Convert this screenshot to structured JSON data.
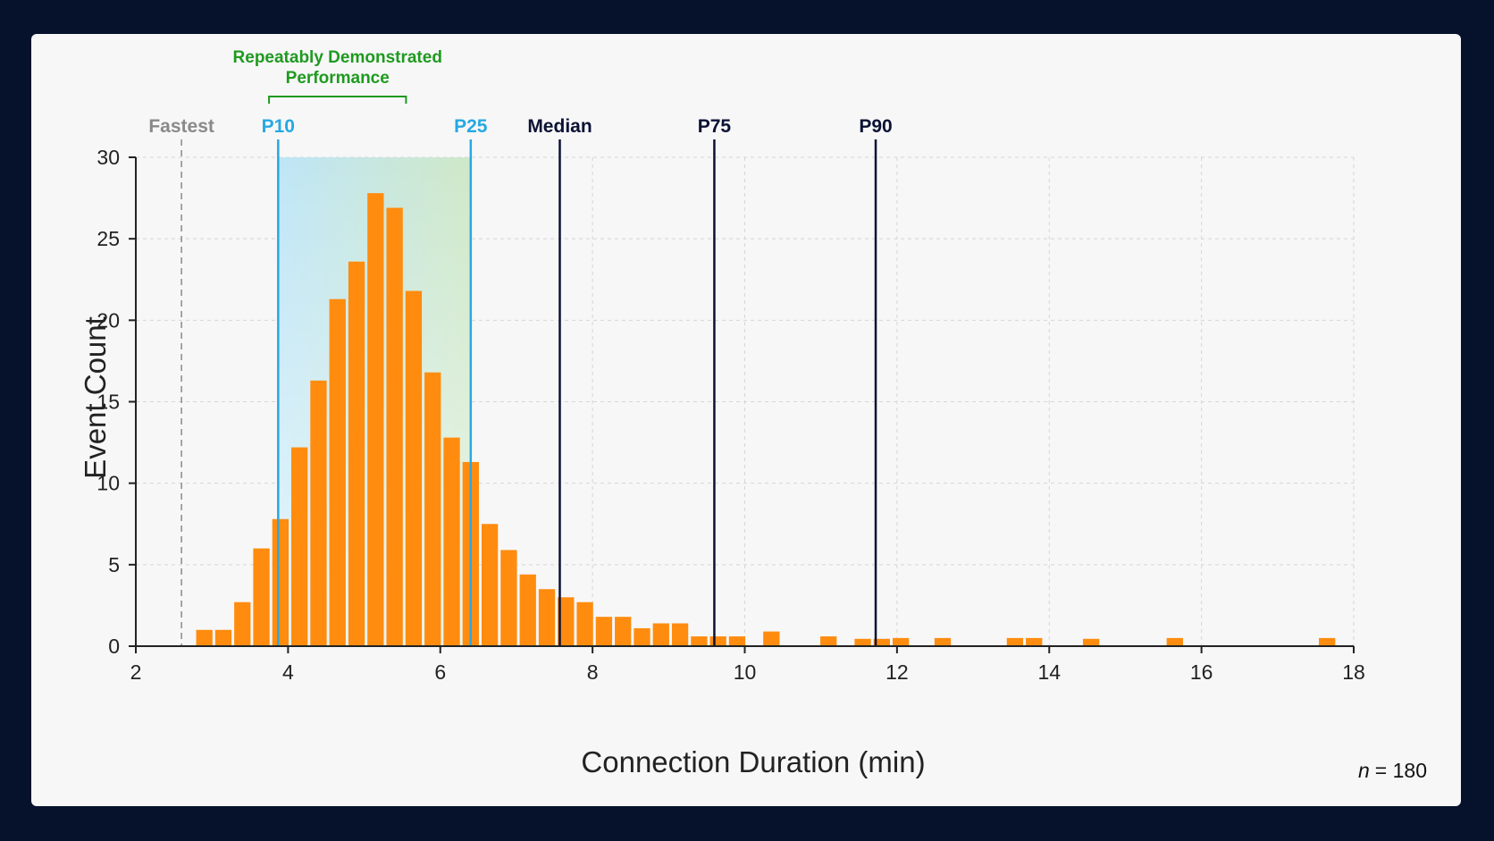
{
  "colors": {
    "background": "#06122c",
    "panel": "#f7f7f8",
    "bar": "#ff8c0f",
    "grid": "#d6d6d6",
    "percentile_low": "#27a9e1",
    "percentile_high": "#0b1233",
    "fastest": "#8a8a8a",
    "annotation": "#1f9a1f"
  },
  "chart_data": {
    "type": "bar",
    "title": "",
    "xlabel": "Connection Duration (min)",
    "ylabel": "Event Count",
    "xlim": [
      2,
      18
    ],
    "ylim": [
      0,
      30
    ],
    "x_ticks": [
      2,
      4,
      6,
      8,
      10,
      12,
      14,
      16,
      18
    ],
    "y_ticks": [
      0,
      5,
      10,
      15,
      20,
      25,
      30
    ],
    "grid": true,
    "bin_width": 0.25,
    "bins": [
      {
        "x": 2.9,
        "count": 1
      },
      {
        "x": 3.15,
        "count": 1
      },
      {
        "x": 3.4,
        "count": 2.7
      },
      {
        "x": 3.65,
        "count": 6
      },
      {
        "x": 3.9,
        "count": 7.8
      },
      {
        "x": 4.15,
        "count": 12.2
      },
      {
        "x": 4.4,
        "count": 16.3
      },
      {
        "x": 4.65,
        "count": 21.3
      },
      {
        "x": 4.9,
        "count": 23.6
      },
      {
        "x": 5.15,
        "count": 27.8
      },
      {
        "x": 5.4,
        "count": 26.9
      },
      {
        "x": 5.65,
        "count": 21.8
      },
      {
        "x": 5.9,
        "count": 16.8
      },
      {
        "x": 6.15,
        "count": 12.8
      },
      {
        "x": 6.4,
        "count": 11.3
      },
      {
        "x": 6.65,
        "count": 7.5
      },
      {
        "x": 6.9,
        "count": 5.9
      },
      {
        "x": 7.15,
        "count": 4.4
      },
      {
        "x": 7.4,
        "count": 3.5
      },
      {
        "x": 7.65,
        "count": 3
      },
      {
        "x": 7.9,
        "count": 2.7
      },
      {
        "x": 8.15,
        "count": 1.8
      },
      {
        "x": 8.4,
        "count": 1.8
      },
      {
        "x": 8.65,
        "count": 1.1
      },
      {
        "x": 8.9,
        "count": 1.4
      },
      {
        "x": 9.15,
        "count": 1.4
      },
      {
        "x": 9.4,
        "count": 0.6
      },
      {
        "x": 9.65,
        "count": 0.6
      },
      {
        "x": 9.9,
        "count": 0.6
      },
      {
        "x": 10.35,
        "count": 0.9
      },
      {
        "x": 11.1,
        "count": 0.6
      },
      {
        "x": 11.55,
        "count": 0.45
      },
      {
        "x": 11.8,
        "count": 0.45
      },
      {
        "x": 12.05,
        "count": 0.5
      },
      {
        "x": 12.6,
        "count": 0.5
      },
      {
        "x": 13.55,
        "count": 0.5
      },
      {
        "x": 13.8,
        "count": 0.5
      },
      {
        "x": 14.55,
        "count": 0.45
      },
      {
        "x": 15.65,
        "count": 0.5
      },
      {
        "x": 17.65,
        "count": 0.5
      }
    ],
    "markers": [
      {
        "label": "Fastest",
        "x": 2.6,
        "style": "dashed",
        "color": "#8a8a8a"
      },
      {
        "label": "P10",
        "x": 3.87,
        "style": "solid",
        "color": "#27a9e1"
      },
      {
        "label": "P25",
        "x": 6.4,
        "style": "solid",
        "color": "#27a9e1"
      },
      {
        "label": "Median",
        "x": 7.57,
        "style": "solid",
        "color": "#0b1233"
      },
      {
        "label": "P75",
        "x": 9.6,
        "style": "solid",
        "color": "#0b1233"
      },
      {
        "label": "P90",
        "x": 11.72,
        "style": "solid",
        "color": "#0b1233"
      }
    ],
    "shaded_region": {
      "x_start": 3.87,
      "x_end": 6.4
    },
    "annotation": {
      "lines": [
        "Repeatably Demonstrated",
        "Performance"
      ],
      "x_start": 3.75,
      "x_end": 5.55
    },
    "n_label": "n",
    "n_value": "= 180"
  }
}
